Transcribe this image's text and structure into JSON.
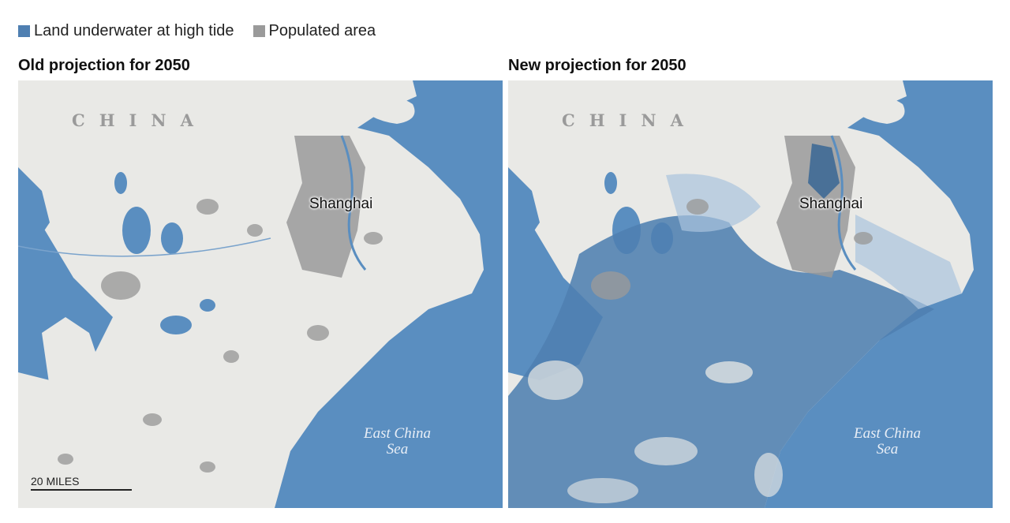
{
  "legend": {
    "items": [
      {
        "label": "Land underwater at high tide",
        "color": "#4f7fb1"
      },
      {
        "label": "Populated area",
        "color": "#9a9a9a"
      }
    ]
  },
  "panels": [
    {
      "title": "Old projection for 2050",
      "flood": "low"
    },
    {
      "title": "New projection for 2050",
      "flood": "high"
    }
  ],
  "labels": {
    "country": "CHINA",
    "city": "Shanghai",
    "sea_line1": "East China",
    "sea_line2": "Sea"
  },
  "scale_bar": {
    "label": "20 MILES"
  },
  "colors": {
    "water": "#5a8ec0",
    "land": "#e9e9e6",
    "populated": "#9a9a9a",
    "flooded": "#4f7fb1"
  }
}
